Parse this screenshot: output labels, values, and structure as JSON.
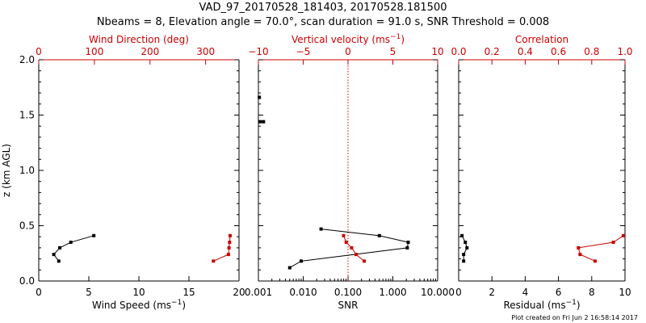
{
  "title": {
    "line1": "VAD_97_20170528_181403, 20170528.181500",
    "line2": "Nbeams = 8, Elevation angle = 70.0°, scan duration = 91.0 s, SNR Threshold = 0.008"
  },
  "footer": "Plot created on Fri Jun  2 16:58:14 2017",
  "colors": {
    "primary": "#000000",
    "secondary": "#cc0000"
  },
  "chart_data": [
    {
      "type": "line",
      "ylabel": "z (km AGL)",
      "ylim": [
        0,
        2.0
      ],
      "yticks": [
        "0.0",
        "0.5",
        "1.0",
        "1.5",
        "2.0"
      ],
      "bottom_axis": {
        "label": "Wind Speed (ms",
        "label_sup": "−1",
        "label_tail": ")",
        "range": [
          0,
          20
        ],
        "scale": "linear",
        "ticks": [
          0,
          5,
          10,
          15,
          20
        ],
        "tick_labels": [
          "0",
          "5",
          "10",
          "15",
          "20"
        ]
      },
      "top_axis": {
        "label": "Wind Direction (deg)",
        "label_sup": "",
        "label_tail": "",
        "range": [
          0,
          360
        ],
        "scale": "linear",
        "ticks": [
          0,
          100,
          200,
          300
        ],
        "tick_labels": [
          "0",
          "100",
          "200",
          "300"
        ]
      },
      "series": [
        {
          "axis": "bottom",
          "color": "#000000",
          "x": [
            2.0,
            1.5,
            2.1,
            3.2,
            5.5
          ],
          "y": [
            0.18,
            0.24,
            0.3,
            0.35,
            0.41
          ]
        },
        {
          "axis": "top",
          "color": "#cc0000",
          "x": [
            314,
            341,
            342,
            343,
            344
          ],
          "y": [
            0.18,
            0.24,
            0.3,
            0.35,
            0.41
          ]
        }
      ]
    },
    {
      "type": "line",
      "ylim": [
        0,
        2.0
      ],
      "bottom_axis": {
        "label": "SNR",
        "label_sup": "",
        "label_tail": "",
        "range": [
          0.001,
          10
        ],
        "scale": "log",
        "ticks": [
          0.001,
          0.01,
          0.1,
          1,
          10
        ],
        "tick_labels": [
          "0.001",
          "0.010",
          "0.100",
          "1.000",
          "10.000"
        ]
      },
      "top_axis": {
        "label": "Vertical velocity (ms",
        "label_sup": "−1",
        "label_tail": ")",
        "range": [
          -10,
          10
        ],
        "scale": "linear",
        "ticks": [
          -10,
          -5,
          0,
          5,
          10
        ],
        "tick_labels": [
          "−10",
          "−5",
          "0",
          "5",
          "10"
        ]
      },
      "reference_line": {
        "axis": "top",
        "x": 0,
        "color": "#cc0000",
        "style": "dotted"
      },
      "series": [
        {
          "axis": "bottom",
          "color": "#000000",
          "x": [
            0.005,
            0.009,
            2.1,
            2.2,
            0.5,
            0.025
          ],
          "y": [
            0.12,
            0.18,
            0.3,
            0.35,
            0.41,
            0.47
          ]
        },
        {
          "axis": "bottom",
          "color": "#000000",
          "x": [
            0.0011,
            0.0013
          ],
          "y": [
            1.44,
            1.44
          ]
        },
        {
          "axis": "bottom",
          "color": "#000000",
          "x": [
            0.00105
          ],
          "y": [
            1.66
          ]
        },
        {
          "axis": "top",
          "color": "#cc0000",
          "x": [
            1.8,
            0.9,
            0.4,
            -0.2,
            -0.5
          ],
          "y": [
            0.18,
            0.24,
            0.3,
            0.35,
            0.41
          ]
        }
      ]
    },
    {
      "type": "line",
      "ylim": [
        0,
        2.0
      ],
      "bottom_axis": {
        "label": "Residual (ms",
        "label_sup": "−1",
        "label_tail": ")",
        "range": [
          0,
          10
        ],
        "scale": "linear",
        "ticks": [
          0,
          2,
          4,
          6,
          8,
          10
        ],
        "tick_labels": [
          "0",
          "2",
          "4",
          "6",
          "8",
          "10"
        ]
      },
      "top_axis": {
        "label": "Correlation",
        "label_sup": "",
        "label_tail": "",
        "range": [
          0,
          1
        ],
        "scale": "linear",
        "ticks": [
          0,
          0.2,
          0.4,
          0.6,
          0.8,
          1.0
        ],
        "tick_labels": [
          "0.0",
          "0.2",
          "0.4",
          "0.6",
          "0.8",
          "1.0"
        ]
      },
      "series": [
        {
          "axis": "bottom",
          "color": "#000000",
          "x": [
            0.3,
            0.3,
            0.5,
            0.4,
            0.2
          ],
          "y": [
            0.18,
            0.24,
            0.3,
            0.35,
            0.41
          ]
        },
        {
          "axis": "top",
          "color": "#cc0000",
          "x": [
            0.82,
            0.73,
            0.72,
            0.93,
            0.99
          ],
          "y": [
            0.18,
            0.24,
            0.3,
            0.35,
            0.41
          ]
        }
      ]
    }
  ]
}
